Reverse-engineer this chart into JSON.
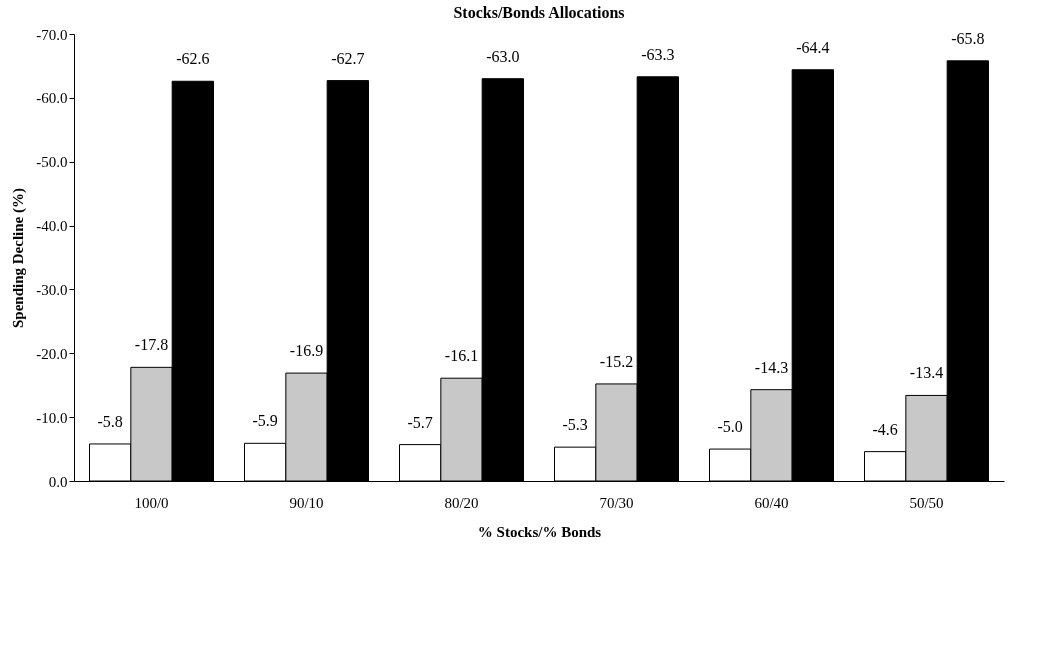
{
  "chart_data": {
    "type": "bar",
    "title": "Stocks/Bonds Allocations",
    "xlabel": "% Stocks/% Bonds",
    "ylabel": "Spending Decline (%)",
    "categories": [
      "100/0",
      "90/10",
      "80/20",
      "70/30",
      "60/40",
      "50/50"
    ],
    "series": [
      {
        "color": "#ffffff",
        "values": [
          -5.8,
          -5.9,
          -5.7,
          -5.3,
          -5.0,
          -4.6
        ],
        "value_labels": [
          "-5.8",
          "-5.9",
          "-5.7",
          "-5.3",
          "-5.0",
          "-4.6"
        ]
      },
      {
        "color": "#c8c8c8",
        "values": [
          -17.8,
          -16.9,
          -16.1,
          -15.2,
          -14.3,
          -13.4
        ],
        "value_labels": [
          "-17.8",
          "-16.9",
          "-16.1",
          "-15.2",
          "-14.3",
          "-13.4"
        ]
      },
      {
        "color": "#000000",
        "values": [
          -62.6,
          -62.7,
          -63.0,
          -63.3,
          -64.4,
          -65.8
        ],
        "value_labels": [
          "-62.6",
          "-62.7",
          "-63.0",
          "-63.3",
          "-64.4",
          "-65.8"
        ]
      }
    ],
    "ylim": [
      0,
      -70
    ],
    "yticks": [
      {
        "value": 0,
        "label": "0.0"
      },
      {
        "value": -10,
        "label": "-10.0"
      },
      {
        "value": -20,
        "label": "-20.0"
      },
      {
        "value": -30,
        "label": "-30.0"
      },
      {
        "value": -40,
        "label": "-40.0"
      },
      {
        "value": -50,
        "label": "-50.0"
      },
      {
        "value": -60,
        "label": "-60.0"
      },
      {
        "value": -70,
        "label": "-70.0"
      }
    ]
  }
}
